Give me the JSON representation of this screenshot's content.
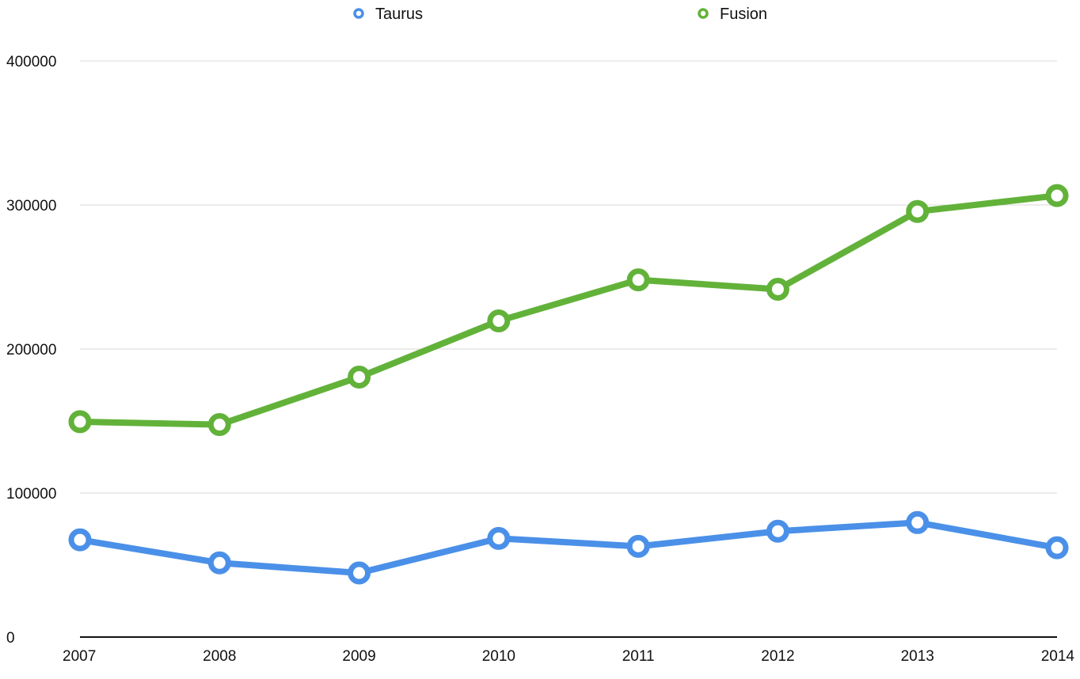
{
  "chart_data": {
    "type": "line",
    "title": "",
    "xlabel": "",
    "ylabel": "",
    "categories": [
      "2007",
      "2008",
      "2009",
      "2010",
      "2011",
      "2012",
      "2013",
      "2014"
    ],
    "series": [
      {
        "name": "Taurus",
        "color": "#4a90e8",
        "values": [
          67500,
          51500,
          44500,
          68500,
          63000,
          73500,
          79500,
          62000
        ]
      },
      {
        "name": "Fusion",
        "color": "#62b23a",
        "values": [
          149500,
          147500,
          180500,
          219500,
          248000,
          241500,
          295500,
          306500
        ]
      }
    ],
    "ylim": [
      0,
      400000
    ],
    "y_ticks": [
      0,
      100000,
      200000,
      300000,
      400000
    ],
    "y_tick_labels": [
      "0",
      "100000",
      "200000",
      "300000",
      "400000"
    ],
    "grid": true,
    "legend_position": "top-center"
  }
}
